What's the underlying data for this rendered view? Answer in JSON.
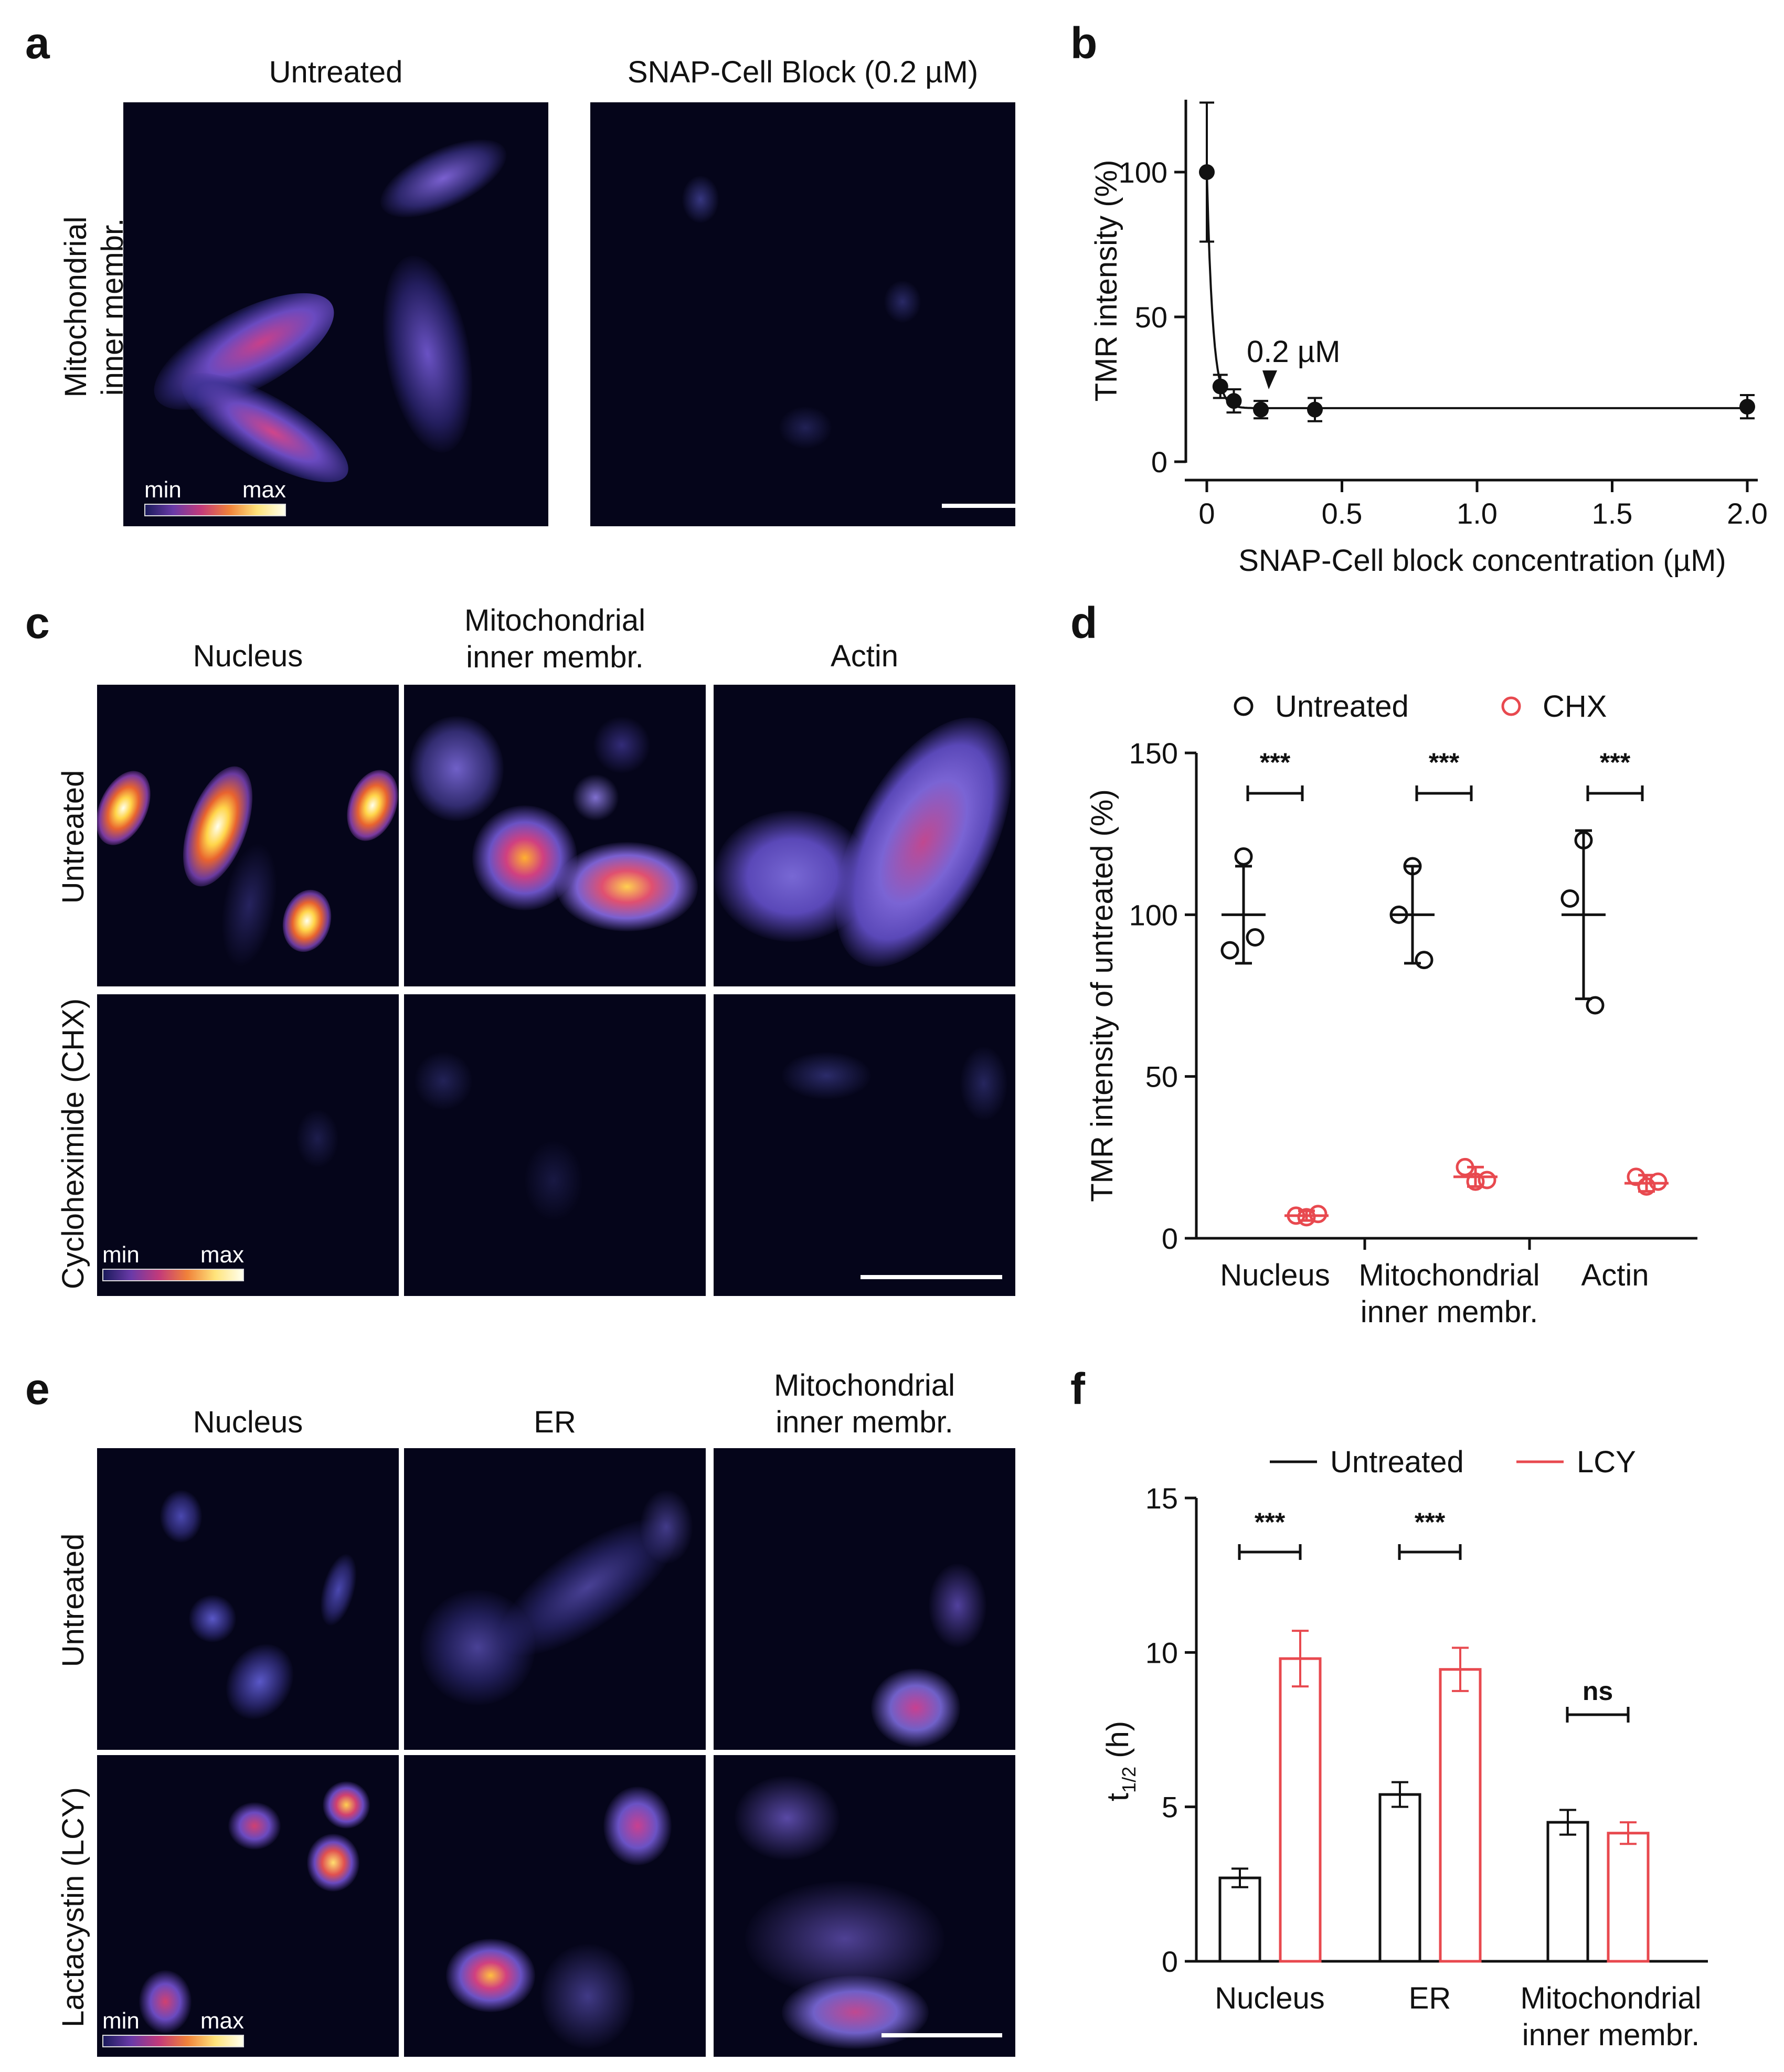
{
  "panels": {
    "a": {
      "label": "a",
      "col_titles": [
        "Untreated",
        "SNAP-Cell Block (0.2 µM)"
      ],
      "row_title": "Mitochondrial\ninner membr.",
      "legend_min": "min",
      "legend_max": "max"
    },
    "b": {
      "label": "b"
    },
    "c": {
      "label": "c",
      "col_titles": [
        "Nucleus",
        "Mitochondrial\ninner membr.",
        "Actin"
      ],
      "row_titles": [
        "Untreated",
        "Cycloheximide (CHX)"
      ],
      "legend_min": "min",
      "legend_max": "max"
    },
    "d": {
      "label": "d"
    },
    "e": {
      "label": "e",
      "col_titles": [
        "Nucleus",
        "ER",
        "Mitochondrial\ninner membr."
      ],
      "row_titles": [
        "Untreated",
        "Lactacystin (LCY)"
      ],
      "legend_min": "min",
      "legend_max": "max"
    },
    "f": {
      "label": "f"
    }
  },
  "chart_data": [
    {
      "id": "b",
      "type": "scatter",
      "xlabel": "SNAP-Cell block concentration (µM)",
      "ylabel": "TMR intensity (%)",
      "xlim": [
        0,
        2.0
      ],
      "ylim": [
        0,
        125
      ],
      "xticks": [
        0,
        0.5,
        1.0,
        1.5,
        2.0
      ],
      "xtick_labels": [
        "0",
        "0.5",
        "1.0",
        "1.5",
        "2.0"
      ],
      "yticks": [
        0,
        50,
        100
      ],
      "annotation": "0.2 µM",
      "annotation_x": 0.2,
      "points": [
        {
          "x": 0,
          "y": 100,
          "err": 24
        },
        {
          "x": 0.05,
          "y": 26,
          "err": 4
        },
        {
          "x": 0.1,
          "y": 21,
          "err": 4
        },
        {
          "x": 0.2,
          "y": 18,
          "err": 3
        },
        {
          "x": 0.4,
          "y": 18,
          "err": 4
        },
        {
          "x": 2.0,
          "y": 19,
          "err": 4
        }
      ],
      "fit": {
        "plateau": 18.5,
        "span": 81.5,
        "k": 45
      }
    },
    {
      "id": "d",
      "type": "scatter",
      "ylabel": "TMR intensity of untreated (%)",
      "ylim": [
        0,
        150
      ],
      "yticks": [
        0,
        50,
        100,
        150
      ],
      "categories": [
        "Nucleus",
        "Mitochondrial\ninner membr.",
        "Actin"
      ],
      "significance": [
        "***",
        "***",
        "***"
      ],
      "series": [
        {
          "name": "Untreated",
          "color": "#111111",
          "mean": [
            100,
            100,
            100
          ],
          "sd": [
            15,
            15,
            26
          ],
          "points": [
            [
              118,
              89,
              93
            ],
            [
              115,
              100,
              86
            ],
            [
              123,
              105,
              72
            ]
          ]
        },
        {
          "name": "CHX",
          "color": "#e8494f",
          "mean": [
            7,
            19,
            17
          ],
          "sd": [
            1.5,
            3,
            2.5
          ],
          "points": [
            [
              7,
              6.5,
              7.5
            ],
            [
              22,
              17.5,
              18
            ],
            [
              19,
              16,
              17.5
            ]
          ]
        }
      ]
    },
    {
      "id": "f",
      "type": "bar",
      "ylabel": "t",
      "ylabel_sub": "1/2",
      "ylabel_unit": " (h)",
      "ylim": [
        0,
        15
      ],
      "yticks": [
        0,
        5,
        10,
        15
      ],
      "categories": [
        "Nucleus",
        "ER",
        "Mitochondrial\ninner membr."
      ],
      "significance": [
        "***",
        "***",
        "ns"
      ],
      "series": [
        {
          "name": "Untreated",
          "color": "#111111",
          "values": [
            2.7,
            5.4,
            4.5
          ],
          "errors": [
            0.3,
            0.4,
            0.4
          ]
        },
        {
          "name": "LCY",
          "color": "#e8494f",
          "values": [
            9.8,
            9.45,
            4.15
          ],
          "errors": [
            0.9,
            0.7,
            0.35
          ]
        }
      ]
    }
  ]
}
